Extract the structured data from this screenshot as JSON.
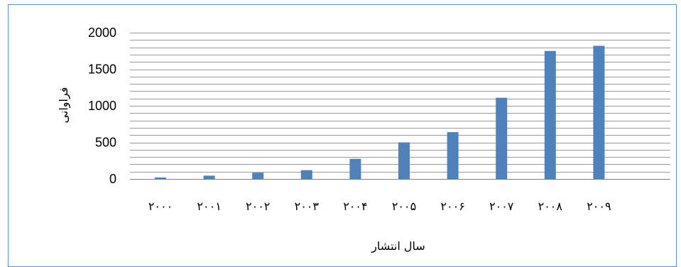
{
  "chart_data": {
    "type": "bar",
    "title": "",
    "xlabel": "سال انتشار",
    "ylabel": "فراوانی",
    "categories": [
      "۲۰۰۰",
      "۲۰۰۱",
      "۲۰۰۲",
      "۲۰۰۳",
      "۲۰۰۴",
      "۲۰۰۵",
      "۲۰۰۶",
      "۲۰۰۷",
      "۲۰۰۸",
      "۲۰۰۹"
    ],
    "values": [
      20,
      45,
      85,
      120,
      275,
      500,
      640,
      1110,
      1750,
      1820
    ],
    "ylim": [
      0,
      2000
    ],
    "yticks": [
      "0",
      "500",
      "1000",
      "1500",
      "2000"
    ],
    "grid": true,
    "bar_color": "#4f81bd"
  }
}
